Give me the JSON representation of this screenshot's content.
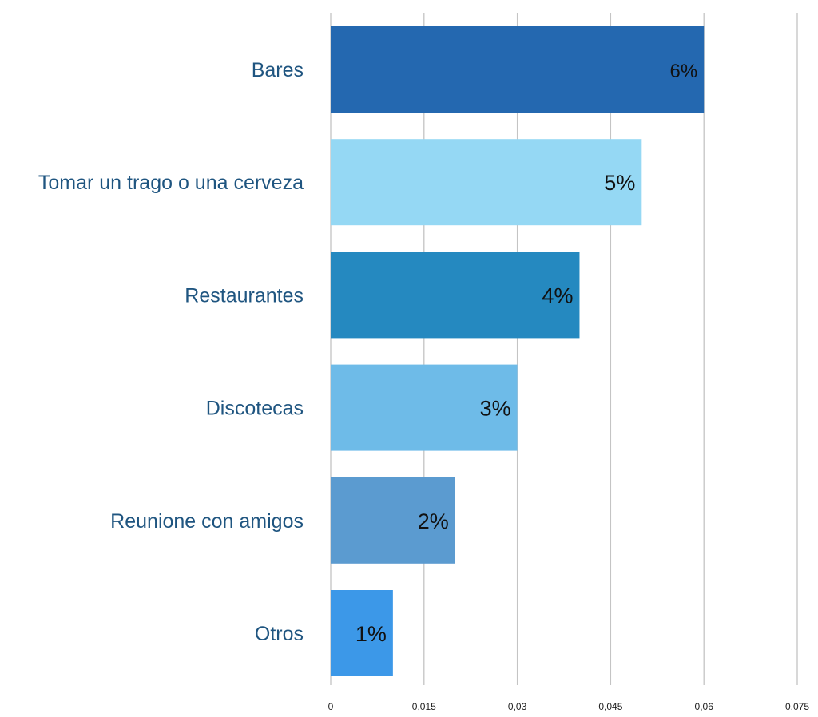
{
  "chart_data": {
    "type": "bar",
    "orientation": "horizontal",
    "title": "",
    "xlabel": "",
    "ylabel": "",
    "categories": [
      "Bares",
      "Tomar un trago o una cerveza",
      "Restaurantes",
      "Discotecas",
      "Reunione con amigos",
      "Otros"
    ],
    "values": [
      0.06,
      0.05,
      0.04,
      0.03,
      0.02,
      0.01
    ],
    "data_labels": [
      "6%",
      "5%",
      "4%",
      "3%",
      "2%",
      "1%"
    ],
    "colors": [
      "#2468b0",
      "#95d8f4",
      "#2589c0",
      "#6ebbe8",
      "#5b9bd0",
      "#3c98e8"
    ],
    "xlim": [
      0,
      0.075
    ],
    "x_ticks": [
      0,
      0.015,
      0.03,
      0.045,
      0.06,
      0.075
    ],
    "x_tick_labels": [
      "0",
      "0,015",
      "0,03",
      "0,045",
      "0,06",
      "0,075"
    ],
    "grid": "vertical",
    "legend": "none"
  }
}
